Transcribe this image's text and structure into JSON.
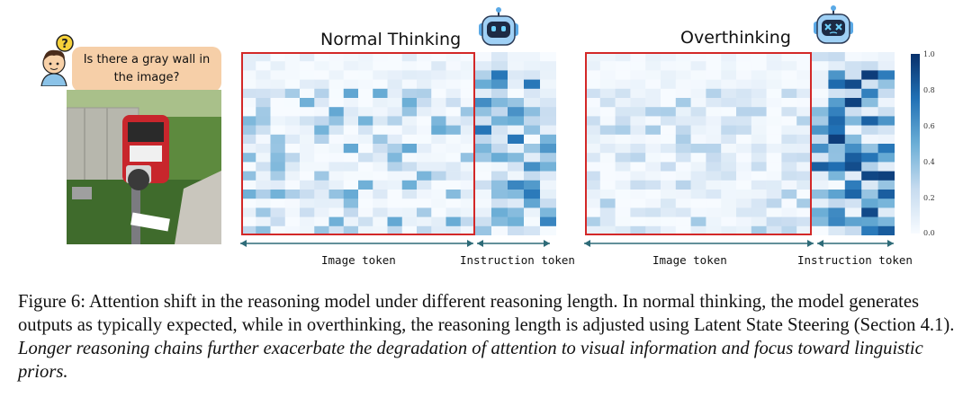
{
  "question": {
    "line1": "Is there a gray wall in",
    "line2": "the image?"
  },
  "avatar_badge": "?",
  "panels": {
    "normal": {
      "title": "Normal Thinking",
      "robot": "happy-robot-icon",
      "rows": 20,
      "image_cols": 16,
      "instr_cols": 5
    },
    "over": {
      "title": "Overthinking",
      "robot": "dizzy-robot-icon",
      "rows": 20,
      "image_cols": 15,
      "instr_cols": 5
    }
  },
  "axis_labels": {
    "normal_image": "Image token",
    "normal_instruction": "Instruction token",
    "over_image": "Image token",
    "over_instruction": "Instruction token"
  },
  "colorbar": {
    "ticks": [
      "1.0",
      "0.8",
      "0.6",
      "0.4",
      "0.2",
      "0.0"
    ],
    "min": 0,
    "max": 1
  },
  "colors": {
    "highlight_border": "#d32828",
    "arrow": "#2e6b78",
    "bubble": "#f6cfa8"
  },
  "caption": {
    "normal_part": "Figure 6: Attention shift in the reasoning model under different reasoning length. In normal thinking, the model generates outputs as typically expected, while in overthinking, the reasoning length is adjusted using Latent State Steering (Section 4.1). ",
    "italic_part": "Longer reasoning chains further exacerbate the degradation of attention to visual information and focus toward linguistic priors."
  }
}
